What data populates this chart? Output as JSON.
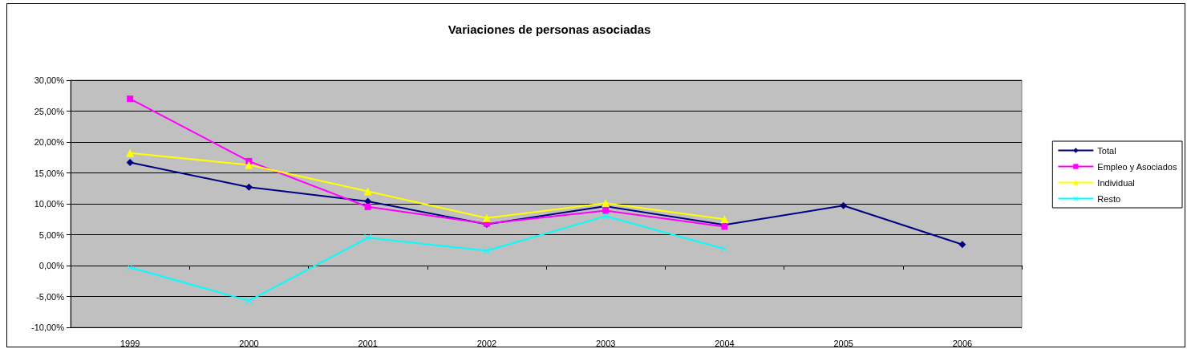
{
  "chart_data": {
    "type": "line",
    "title": "Variaciones de personas asociadas",
    "categories": [
      "1999",
      "2000",
      "2001",
      "2002",
      "2003",
      "2004",
      "2005",
      "2006"
    ],
    "series": [
      {
        "name": "Total",
        "color": "#000080",
        "marker": "diamond",
        "values": [
          16.7,
          12.7,
          10.4,
          6.7,
          9.6,
          6.6,
          9.7,
          3.4
        ]
      },
      {
        "name": "Empleo y Asociados",
        "color": "#ff00ff",
        "marker": "square",
        "values": [
          27.0,
          16.9,
          9.5,
          6.8,
          8.9,
          6.3,
          null,
          null
        ]
      },
      {
        "name": "Individual",
        "color": "#ffff00",
        "marker": "triangle",
        "values": [
          18.2,
          16.3,
          12.0,
          7.7,
          10.1,
          7.5,
          null,
          null
        ]
      },
      {
        "name": "Resto",
        "color": "#00ffff",
        "marker": "cross",
        "values": [
          -0.3,
          -5.7,
          4.5,
          2.4,
          8.0,
          2.7,
          null,
          null
        ]
      }
    ],
    "ylim": [
      -10,
      30
    ],
    "yticks": [
      {
        "value": -10,
        "label": "-10,00%"
      },
      {
        "value": -5,
        "label": "-5,00%"
      },
      {
        "value": 0,
        "label": "0,00%"
      },
      {
        "value": 5,
        "label": "5,00%"
      },
      {
        "value": 10,
        "label": "10,00%"
      },
      {
        "value": 15,
        "label": "15,00%"
      },
      {
        "value": 20,
        "label": "20,00%"
      },
      {
        "value": 25,
        "label": "25,00%"
      },
      {
        "value": 30,
        "label": "30,00%"
      }
    ],
    "grid": "y",
    "legend": "right",
    "line_style": "solid"
  }
}
